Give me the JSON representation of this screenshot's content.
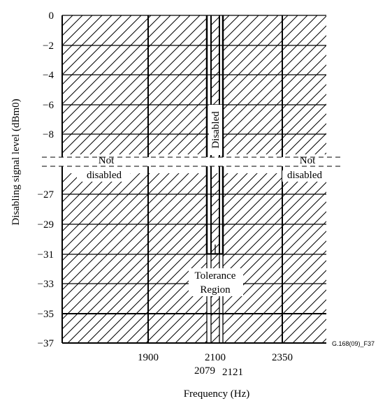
{
  "chart_data": {
    "type": "area",
    "title": "",
    "xlabel": "Frequency (Hz)",
    "ylabel": "Disabling signal level (dBm0)",
    "figure_id": "G.168(09)_F37",
    "y_ticks_upper": [
      "0",
      "−2",
      "−4",
      "−6",
      "−8"
    ],
    "y_ticks_lower": [
      "−27",
      "−29",
      "−31",
      "−33",
      "−35",
      "−37"
    ],
    "x_ticks_top": [
      "1900",
      "2100",
      "2350"
    ],
    "x_ticks_bottom": [
      "2079",
      "2121"
    ],
    "frequency_boundaries_hz": [
      1900,
      2079,
      2100,
      2121,
      2350
    ],
    "regions": {
      "not_disabled_left": [
        "Not",
        "disabled"
      ],
      "not_disabled_right": [
        "Not",
        "disabled"
      ],
      "disabled": "Disabled",
      "tolerance": [
        "Tolerance",
        "Region"
      ]
    },
    "grid": true,
    "axis_break": "between −8 and −27"
  }
}
